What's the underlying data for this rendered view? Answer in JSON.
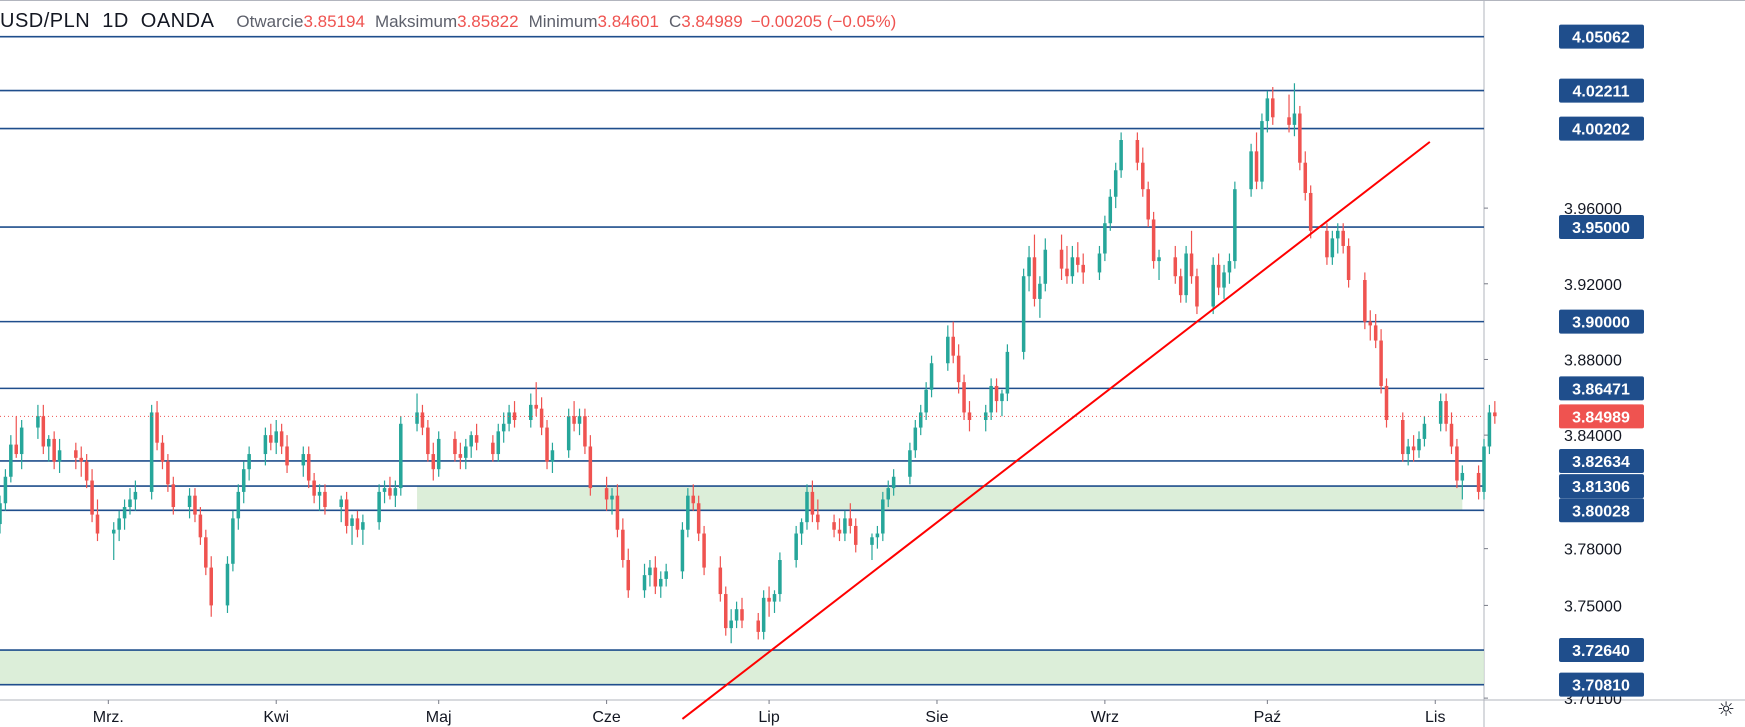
{
  "header": {
    "symbol": "USD/PLN",
    "interval": "1D",
    "source": "OANDA",
    "open_label": "Otwarcie",
    "open": "3.85194",
    "high_label": "Maksimum",
    "high": "3.85822",
    "low_label": "Minimum",
    "low": "3.84601",
    "close_label": "C",
    "close": "3.84989",
    "change": "−0.00205 (−0.05%)"
  },
  "colors": {
    "up": "#26a69a",
    "down": "#ef5350",
    "hline": "#1f4e8c",
    "trendline": "#ff0000",
    "zone": "#d6ebd2",
    "price_tag": "#ef5350",
    "level_tag": "#1f4e8c"
  },
  "icons": {
    "settings": "gear-icon"
  },
  "chart_data": {
    "type": "candlestick",
    "symbol": "USD/PLN",
    "interval": "1D",
    "x_ticks": [
      "Mrz.",
      "Kwi",
      "Maj",
      "Cze",
      "Lip",
      "Sie",
      "Wrz",
      "Paź",
      "Lis"
    ],
    "y_ticks": [
      "3.96000",
      "3.92000",
      "3.88000",
      "3.84000",
      "3.78000",
      "3.75000",
      "3.70100"
    ],
    "y_range": [
      3.7,
      4.07
    ],
    "horizontal_levels": [
      "4.05062",
      "4.02211",
      "4.00202",
      "3.95000",
      "3.90000",
      "3.86471",
      "3.82634",
      "3.81306",
      "3.80028",
      "3.72640",
      "3.70810"
    ],
    "current_price": "3.84989",
    "zones": [
      {
        "low": 3.80028,
        "high": 3.81306,
        "from": "2020-04-27",
        "to": "2020-11-06"
      },
      {
        "low": 3.7081,
        "high": 3.7264,
        "from": "2020-02-10",
        "to": "2020-11-10"
      }
    ],
    "trendline": {
      "from": [
        "2020-06-15",
        3.69
      ],
      "to": [
        "2020-10-31",
        3.995
      ]
    },
    "x_start": "2020-02-10",
    "x_end": "2020-11-10",
    "candles": [
      [
        3.793,
        3.808,
        3.788,
        3.804
      ],
      [
        3.804,
        3.822,
        3.8,
        3.818
      ],
      [
        3.818,
        3.84,
        3.815,
        3.835
      ],
      [
        3.835,
        3.85,
        3.828,
        3.83
      ],
      [
        3.83,
        3.848,
        3.822,
        3.844
      ],
      [
        3.844,
        3.856,
        3.838,
        3.85
      ],
      [
        3.85,
        3.856,
        3.83,
        3.834
      ],
      [
        3.834,
        3.84,
        3.826,
        3.838
      ],
      [
        3.838,
        3.842,
        3.822,
        3.826
      ],
      [
        3.826,
        3.838,
        3.82,
        3.832
      ],
      [
        3.832,
        3.836,
        3.822,
        3.828
      ],
      [
        3.828,
        3.834,
        3.818,
        3.826
      ],
      [
        3.826,
        3.83,
        3.812,
        3.816
      ],
      [
        3.816,
        3.822,
        3.794,
        3.798
      ],
      [
        3.798,
        3.806,
        3.784,
        3.788
      ],
      [
        3.788,
        3.794,
        3.774,
        3.79
      ],
      [
        3.79,
        3.8,
        3.784,
        3.796
      ],
      [
        3.796,
        3.806,
        3.79,
        3.802
      ],
      [
        3.802,
        3.812,
        3.798,
        3.806
      ],
      [
        3.806,
        3.816,
        3.8,
        3.81
      ],
      [
        3.81,
        3.856,
        3.806,
        3.852
      ],
      [
        3.852,
        3.858,
        3.832,
        3.836
      ],
      [
        3.836,
        3.84,
        3.822,
        3.826
      ],
      [
        3.826,
        3.83,
        3.81,
        3.814
      ],
      [
        3.814,
        3.818,
        3.798,
        3.802
      ],
      [
        3.802,
        3.812,
        3.796,
        3.808
      ],
      [
        3.808,
        3.812,
        3.794,
        3.798
      ],
      [
        3.798,
        3.802,
        3.782,
        3.786
      ],
      [
        3.786,
        3.79,
        3.766,
        3.77
      ],
      [
        3.77,
        3.776,
        3.744,
        3.75
      ],
      [
        3.75,
        3.776,
        3.746,
        3.772
      ],
      [
        3.772,
        3.8,
        3.768,
        3.796
      ],
      [
        3.796,
        3.814,
        3.79,
        3.81
      ],
      [
        3.81,
        3.826,
        3.804,
        3.822
      ],
      [
        3.822,
        3.834,
        3.816,
        3.83
      ],
      [
        3.83,
        3.844,
        3.824,
        3.84
      ],
      [
        3.84,
        3.846,
        3.832,
        3.836
      ],
      [
        3.836,
        3.848,
        3.83,
        3.842
      ],
      [
        3.842,
        3.846,
        3.83,
        3.834
      ],
      [
        3.834,
        3.84,
        3.82,
        3.824
      ],
      [
        3.824,
        3.834,
        3.818,
        3.83
      ],
      [
        3.83,
        3.834,
        3.812,
        3.816
      ],
      [
        3.816,
        3.82,
        3.804,
        3.808
      ],
      [
        3.808,
        3.814,
        3.8,
        3.81
      ],
      [
        3.81,
        3.814,
        3.798,
        3.802
      ],
      [
        3.802,
        3.808,
        3.794,
        3.806
      ],
      [
        3.806,
        3.81,
        3.788,
        3.792
      ],
      [
        3.792,
        3.798,
        3.782,
        3.796
      ],
      [
        3.796,
        3.8,
        3.786,
        3.79
      ],
      [
        3.79,
        3.798,
        3.782,
        3.794
      ],
      [
        3.794,
        3.814,
        3.79,
        3.81
      ],
      [
        3.81,
        3.816,
        3.804,
        3.812
      ],
      [
        3.812,
        3.818,
        3.806,
        3.808
      ],
      [
        3.808,
        3.816,
        3.802,
        3.812
      ],
      [
        3.812,
        3.85,
        3.808,
        3.846
      ],
      [
        3.846,
        3.862,
        3.842,
        3.852
      ],
      [
        3.852,
        3.856,
        3.84,
        3.844
      ],
      [
        3.844,
        3.848,
        3.826,
        3.83
      ],
      [
        3.83,
        3.836,
        3.816,
        3.822
      ],
      [
        3.822,
        3.842,
        3.818,
        3.838
      ],
      [
        3.838,
        3.842,
        3.826,
        3.83
      ],
      [
        3.83,
        3.836,
        3.822,
        3.828
      ],
      [
        3.828,
        3.838,
        3.822,
        3.834
      ],
      [
        3.834,
        3.842,
        3.828,
        3.84
      ],
      [
        3.84,
        3.846,
        3.832,
        3.836
      ],
      [
        3.836,
        3.84,
        3.826,
        3.83
      ],
      [
        3.83,
        3.846,
        3.826,
        3.842
      ],
      [
        3.842,
        3.852,
        3.836,
        3.846
      ],
      [
        3.846,
        3.856,
        3.842,
        3.852
      ],
      [
        3.852,
        3.858,
        3.844,
        3.848
      ],
      [
        3.848,
        3.862,
        3.844,
        3.856
      ],
      [
        3.856,
        3.868,
        3.85,
        3.854
      ],
      [
        3.854,
        3.86,
        3.84,
        3.844
      ],
      [
        3.844,
        3.848,
        3.822,
        3.826
      ],
      [
        3.826,
        3.836,
        3.82,
        3.832
      ],
      [
        3.832,
        3.854,
        3.828,
        3.85
      ],
      [
        3.85,
        3.858,
        3.842,
        3.846
      ],
      [
        3.846,
        3.854,
        3.84,
        3.85
      ],
      [
        3.85,
        3.854,
        3.83,
        3.834
      ],
      [
        3.834,
        3.84,
        3.808,
        3.812
      ],
      [
        3.812,
        3.818,
        3.8,
        3.806
      ],
      [
        3.806,
        3.812,
        3.798,
        3.808
      ],
      [
        3.808,
        3.814,
        3.786,
        3.79
      ],
      [
        3.79,
        3.796,
        3.77,
        3.774
      ],
      [
        3.774,
        3.78,
        3.754,
        3.758
      ],
      [
        3.758,
        3.772,
        3.754,
        3.766
      ],
      [
        3.766,
        3.774,
        3.76,
        3.77
      ],
      [
        3.77,
        3.776,
        3.756,
        3.76
      ],
      [
        3.76,
        3.768,
        3.754,
        3.764
      ],
      [
        3.764,
        3.772,
        3.76,
        3.768
      ],
      [
        3.768,
        3.794,
        3.764,
        3.79
      ],
      [
        3.79,
        3.812,
        3.786,
        3.808
      ],
      [
        3.808,
        3.814,
        3.8,
        3.804
      ],
      [
        3.804,
        3.808,
        3.784,
        3.788
      ],
      [
        3.788,
        3.792,
        3.766,
        3.77
      ],
      [
        3.77,
        3.776,
        3.752,
        3.756
      ],
      [
        3.756,
        3.76,
        3.734,
        3.738
      ],
      [
        3.738,
        3.748,
        3.73,
        3.742
      ],
      [
        3.742,
        3.752,
        3.738,
        3.748
      ],
      [
        3.748,
        3.754,
        3.738,
        3.742
      ],
      [
        3.742,
        3.746,
        3.732,
        3.736
      ],
      [
        3.736,
        3.758,
        3.732,
        3.754
      ],
      [
        3.754,
        3.76,
        3.744,
        3.752
      ],
      [
        3.752,
        3.758,
        3.746,
        3.756
      ],
      [
        3.756,
        3.778,
        3.752,
        3.774
      ],
      [
        3.774,
        3.792,
        3.77,
        3.788
      ],
      [
        3.788,
        3.796,
        3.782,
        3.794
      ],
      [
        3.794,
        3.814,
        3.79,
        3.81
      ],
      [
        3.81,
        3.816,
        3.794,
        3.798
      ],
      [
        3.798,
        3.806,
        3.79,
        3.794
      ],
      [
        3.794,
        3.798,
        3.786,
        3.79
      ],
      [
        3.79,
        3.796,
        3.784,
        3.788
      ],
      [
        3.788,
        3.8,
        3.784,
        3.796
      ],
      [
        3.796,
        3.804,
        3.788,
        3.792
      ],
      [
        3.792,
        3.796,
        3.778,
        3.782
      ],
      [
        3.782,
        3.788,
        3.774,
        3.786
      ],
      [
        3.786,
        3.792,
        3.78,
        3.788
      ],
      [
        3.788,
        3.81,
        3.784,
        3.806
      ],
      [
        3.806,
        3.816,
        3.802,
        3.812
      ],
      [
        3.812,
        3.822,
        3.808,
        3.818
      ],
      [
        3.818,
        3.836,
        3.814,
        3.832
      ],
      [
        3.832,
        3.848,
        3.828,
        3.844
      ],
      [
        3.844,
        3.856,
        3.84,
        3.852
      ],
      [
        3.852,
        3.868,
        3.848,
        3.864
      ],
      [
        3.864,
        3.882,
        3.86,
        3.878
      ],
      [
        3.878,
        3.898,
        3.874,
        3.892
      ],
      [
        3.892,
        3.9,
        3.878,
        3.882
      ],
      [
        3.882,
        3.888,
        3.862,
        3.868
      ],
      [
        3.868,
        3.872,
        3.848,
        3.852
      ],
      [
        3.852,
        3.858,
        3.842,
        3.848
      ],
      [
        3.848,
        3.856,
        3.842,
        3.852
      ],
      [
        3.852,
        3.87,
        3.848,
        3.866
      ],
      [
        3.866,
        3.87,
        3.852,
        3.858
      ],
      [
        3.858,
        3.864,
        3.85,
        3.862
      ],
      [
        3.862,
        3.888,
        3.858,
        3.884
      ],
      [
        3.884,
        3.928,
        3.88,
        3.924
      ],
      [
        3.924,
        3.94,
        3.916,
        3.934
      ],
      [
        3.934,
        3.946,
        3.908,
        3.912
      ],
      [
        3.912,
        3.924,
        3.902,
        3.92
      ],
      [
        3.92,
        3.944,
        3.916,
        3.938
      ],
      [
        3.938,
        3.946,
        3.922,
        3.928
      ],
      [
        3.928,
        3.94,
        3.92,
        3.924
      ],
      [
        3.924,
        3.94,
        3.92,
        3.934
      ],
      [
        3.934,
        3.942,
        3.926,
        3.93
      ],
      [
        3.93,
        3.936,
        3.92,
        3.926
      ],
      [
        3.926,
        3.94,
        3.922,
        3.936
      ],
      [
        3.936,
        3.956,
        3.932,
        3.952
      ],
      [
        3.952,
        3.97,
        3.948,
        3.966
      ],
      [
        3.966,
        3.984,
        3.96,
        3.98
      ],
      [
        3.98,
        4.0,
        3.976,
        3.996
      ],
      [
        3.996,
        4.0,
        3.98,
        3.984
      ],
      [
        3.984,
        3.992,
        3.966,
        3.97
      ],
      [
        3.97,
        3.974,
        3.95,
        3.954
      ],
      [
        3.954,
        3.958,
        3.928,
        3.932
      ],
      [
        3.932,
        3.938,
        3.922,
        3.934
      ],
      [
        3.934,
        3.94,
        3.92,
        3.924
      ],
      [
        3.924,
        3.928,
        3.91,
        3.914
      ],
      [
        3.914,
        3.94,
        3.91,
        3.936
      ],
      [
        3.936,
        3.948,
        3.92,
        3.924
      ],
      [
        3.924,
        3.928,
        3.904,
        3.908
      ],
      [
        3.908,
        3.934,
        3.904,
        3.93
      ],
      [
        3.93,
        3.936,
        3.914,
        3.918
      ],
      [
        3.918,
        3.93,
        3.912,
        3.926
      ],
      [
        3.926,
        3.936,
        3.92,
        3.932
      ],
      [
        3.932,
        3.974,
        3.928,
        3.97
      ],
      [
        3.97,
        3.994,
        3.966,
        3.99
      ],
      [
        3.99,
        4.0,
        3.97,
        3.974
      ],
      [
        3.974,
        4.01,
        3.97,
        4.006
      ],
      [
        4.006,
        4.022,
        4.0,
        4.018
      ],
      [
        4.018,
        4.024,
        4.004,
        4.008
      ],
      [
        4.008,
        4.02,
        4.0,
        4.004
      ],
      [
        4.004,
        4.026,
        3.998,
        4.01
      ],
      [
        4.01,
        4.014,
        3.98,
        3.984
      ],
      [
        3.984,
        3.99,
        3.964,
        3.968
      ],
      [
        3.968,
        3.972,
        3.944,
        3.948
      ],
      [
        3.948,
        3.952,
        3.93,
        3.934
      ],
      [
        3.934,
        3.948,
        3.93,
        3.944
      ],
      [
        3.944,
        3.952,
        3.936,
        3.948
      ],
      [
        3.948,
        3.952,
        3.936,
        3.94
      ],
      [
        3.94,
        3.944,
        3.918,
        3.922
      ],
      [
        3.922,
        3.926,
        3.896,
        3.9
      ],
      [
        3.9,
        3.906,
        3.89,
        3.898
      ],
      [
        3.898,
        3.904,
        3.886,
        3.89
      ],
      [
        3.89,
        3.896,
        3.862,
        3.866
      ],
      [
        3.866,
        3.87,
        3.844,
        3.848
      ],
      [
        3.848,
        3.852,
        3.826,
        3.83
      ],
      [
        3.83,
        3.838,
        3.824,
        3.834
      ],
      [
        3.834,
        3.84,
        3.826,
        3.832
      ],
      [
        3.832,
        3.842,
        3.828,
        3.838
      ],
      [
        3.838,
        3.85,
        3.834,
        3.846
      ],
      [
        3.846,
        3.862,
        3.842,
        3.858
      ],
      [
        3.858,
        3.862,
        3.842,
        3.846
      ],
      [
        3.846,
        3.852,
        3.83,
        3.834
      ],
      [
        3.834,
        3.838,
        3.812,
        3.816
      ],
      [
        3.816,
        3.824,
        3.806,
        3.82
      ],
      [
        3.82,
        3.824,
        3.806,
        3.81
      ],
      [
        3.81,
        3.838,
        3.806,
        3.834
      ],
      [
        3.834,
        3.856,
        3.83,
        3.852
      ],
      [
        3.852,
        3.858,
        3.846,
        3.85
      ]
    ]
  }
}
